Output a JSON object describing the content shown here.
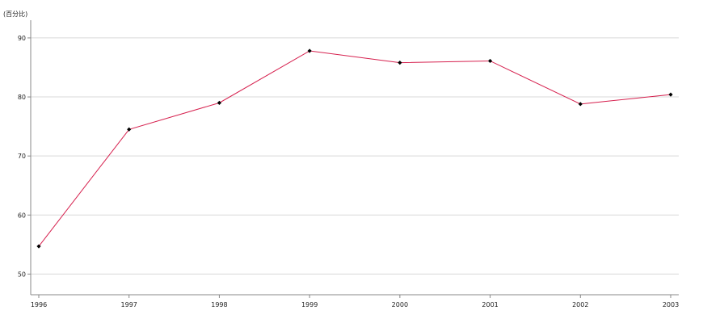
{
  "chart_data": {
    "type": "line",
    "title": "",
    "ylabel": "(百分比)",
    "xlabel": "",
    "categories": [
      "1996",
      "1997",
      "1998",
      "1999",
      "2000",
      "2001",
      "2002",
      "2003"
    ],
    "series": [
      {
        "values": [
          54.7,
          74.5,
          79.0,
          87.8,
          85.8,
          86.1,
          78.8,
          80.4
        ]
      }
    ],
    "ylim": [
      46.5,
      93
    ],
    "yticks": [
      50,
      60,
      70,
      80,
      90
    ],
    "grid": true,
    "legend": "none",
    "colors": {
      "line": "#d6204e",
      "marker": "#000000",
      "grid": "#d9d9d9",
      "axis": "#888888"
    }
  }
}
